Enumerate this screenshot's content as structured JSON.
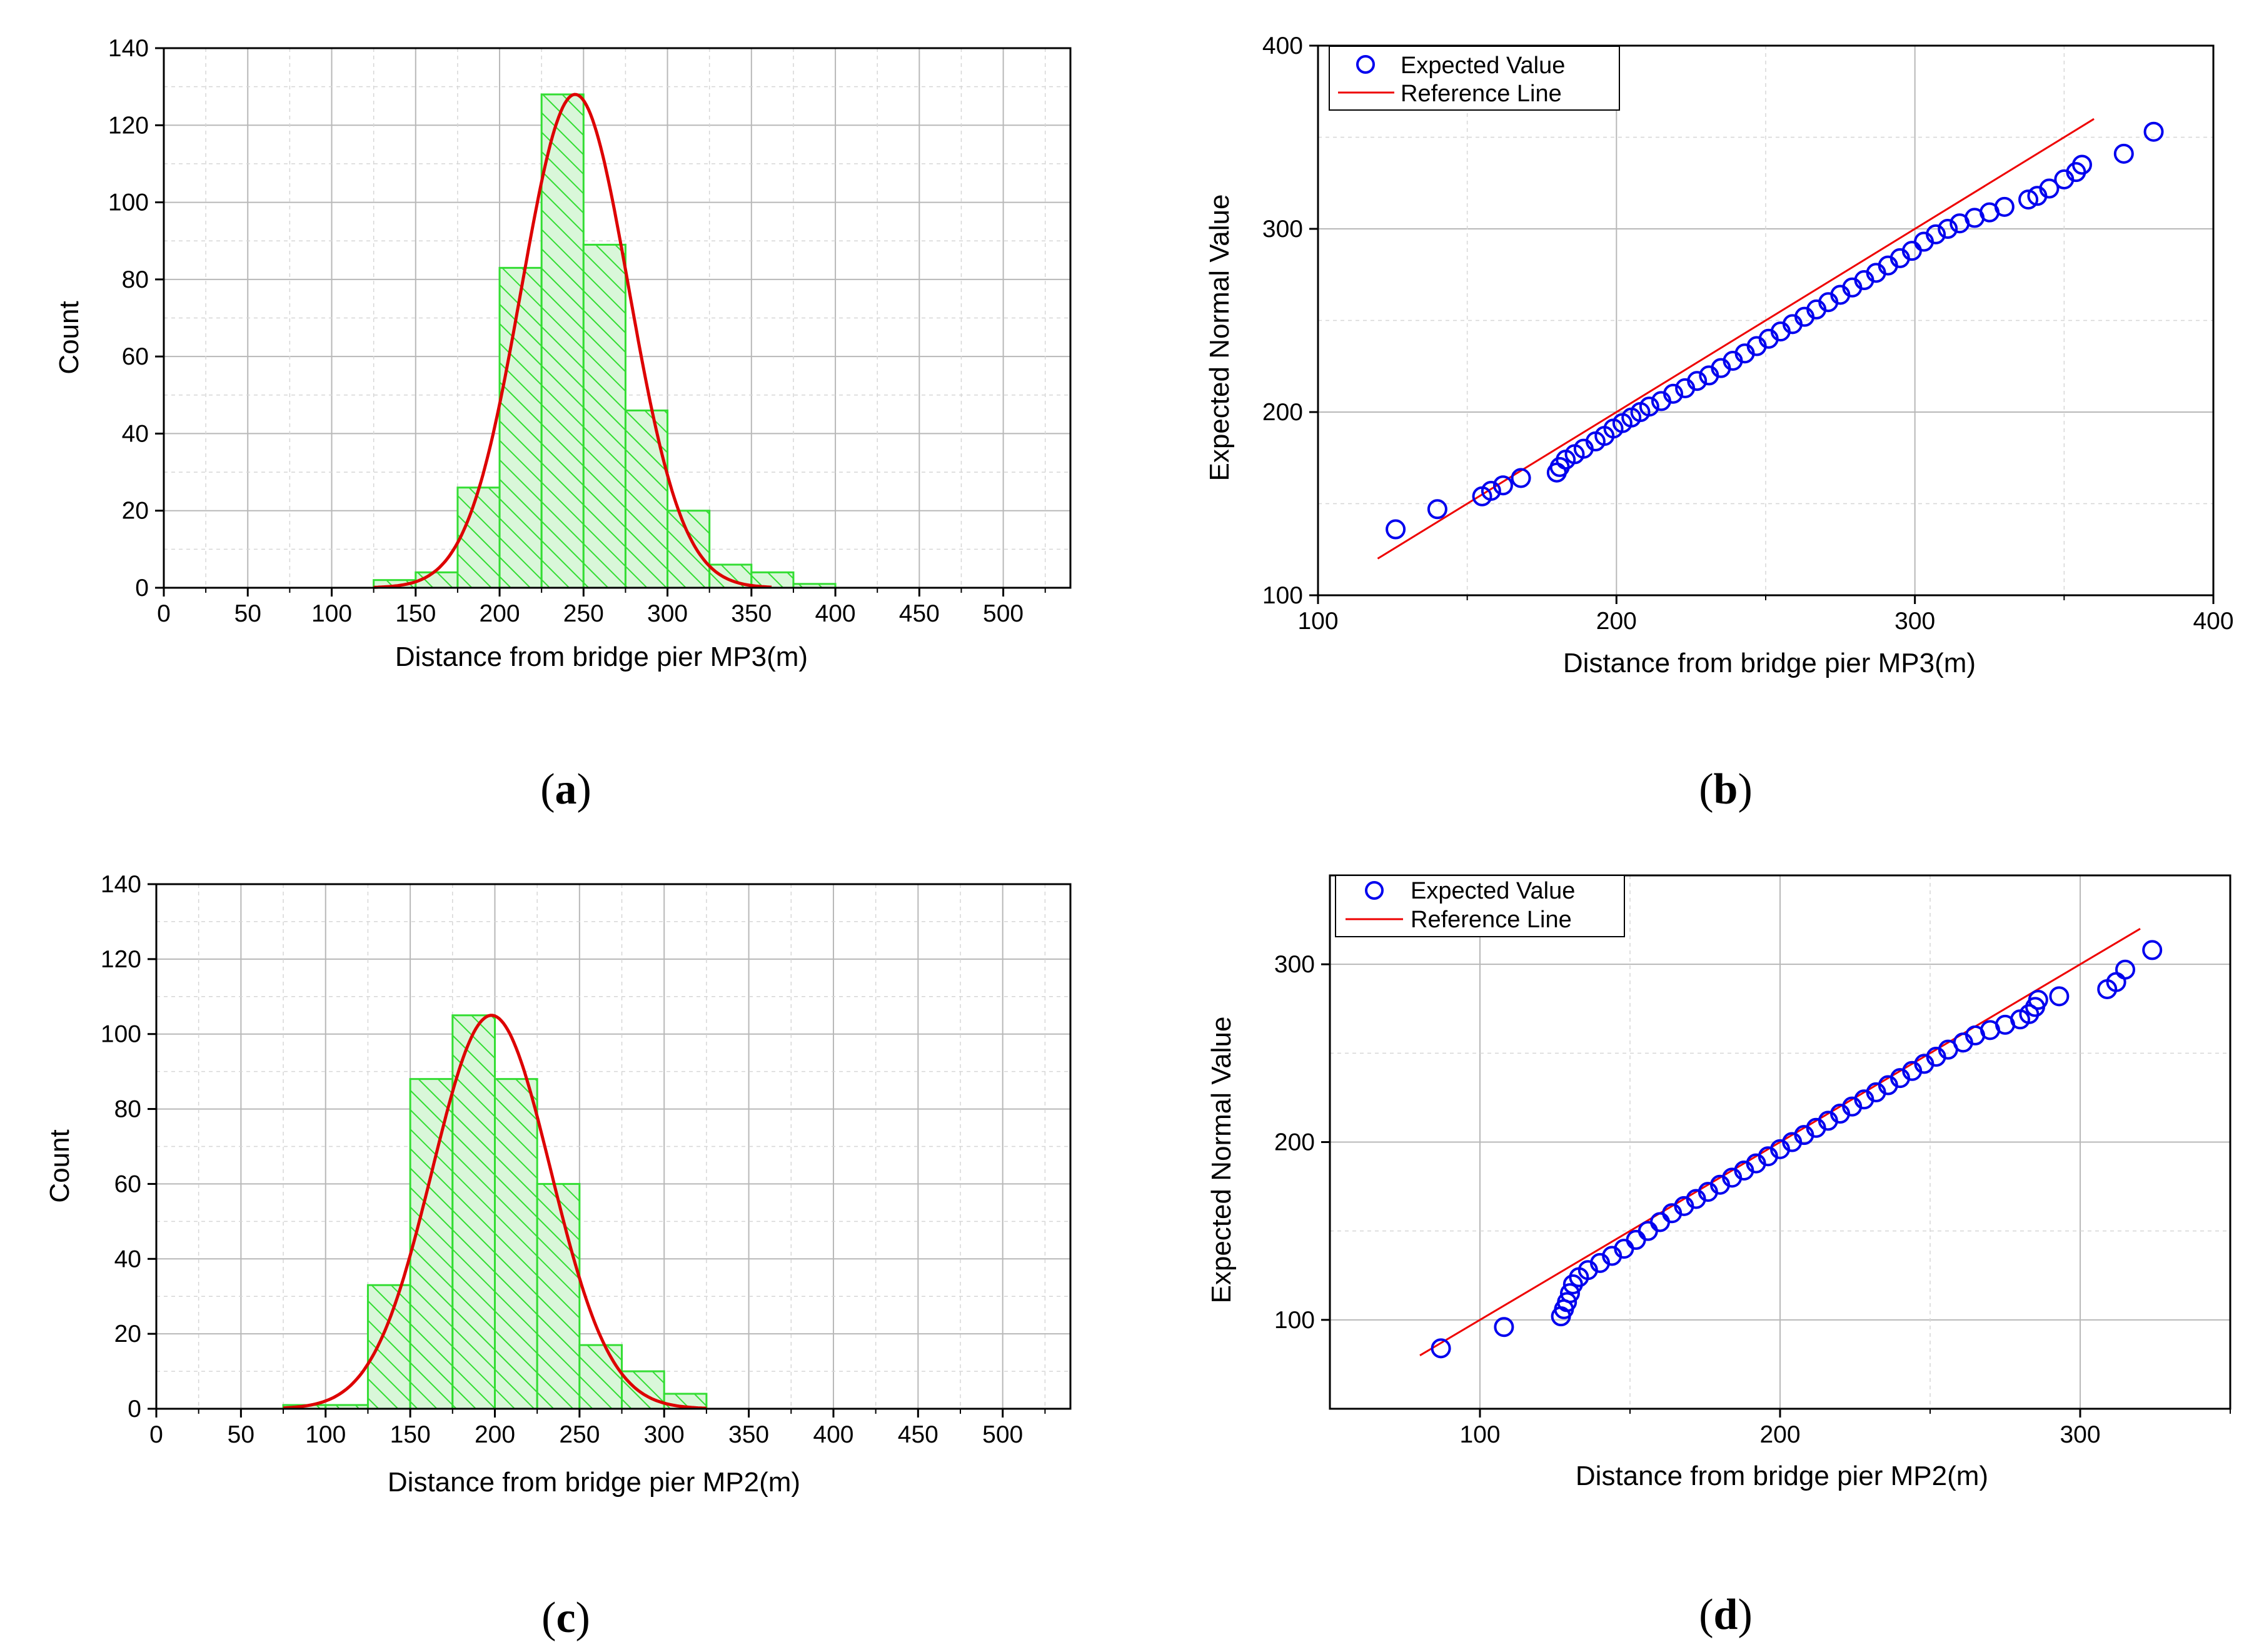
{
  "colors": {
    "bar_fill": "#d9f7d9",
    "bar_stroke": "#33dd33",
    "hatch": "#33dd33",
    "curve": "#dd0000",
    "marker": "#0000ee",
    "reference": "#ee0000",
    "grid": "#b8b8b8",
    "axis": "#000000"
  },
  "chart_data": [
    {
      "panel": "a",
      "caption_letter": "a",
      "type": "bar",
      "subtype": "histogram with fitted normal curve",
      "xlabel": "Distance from bridge pier MP3(m)",
      "ylabel": "Count",
      "xlim": [
        0,
        540
      ],
      "ylim": [
        0,
        140
      ],
      "xticks": [
        0,
        50,
        100,
        150,
        200,
        250,
        300,
        350,
        400,
        450,
        500
      ],
      "yticks": [
        0,
        20,
        40,
        60,
        80,
        100,
        120,
        140
      ],
      "bin_width": 25,
      "bin_starts": [
        125,
        150,
        175,
        200,
        225,
        250,
        275,
        300,
        325,
        350,
        375
      ],
      "values": [
        2,
        4,
        26,
        83,
        128,
        89,
        46,
        20,
        6,
        4,
        1
      ],
      "fit_curve": {
        "type": "normal",
        "mean": 245,
        "sd": 32,
        "peak": 128,
        "x_range": [
          125,
          362
        ]
      }
    },
    {
      "panel": "b",
      "caption_letter": "b",
      "type": "scatter",
      "subtype": "normal probability plot",
      "xlabel": "Distance from bridge pier MP3(m)",
      "ylabel": "Expected Normal Value",
      "xlim": [
        100,
        400
      ],
      "ylim": [
        100,
        400
      ],
      "xticks": [
        100,
        200,
        300,
        400
      ],
      "yticks": [
        100,
        200,
        300,
        400
      ],
      "legend": [
        "Expected Value",
        "Reference Line"
      ],
      "legend_position": "top-left",
      "reference_line": {
        "x": [
          120,
          360
        ],
        "y": [
          120,
          360
        ]
      },
      "points": [
        [
          126,
          136
        ],
        [
          140,
          147
        ],
        [
          155,
          154
        ],
        [
          158,
          157
        ],
        [
          162,
          160
        ],
        [
          168,
          164
        ],
        [
          180,
          167
        ],
        [
          181,
          170
        ],
        [
          183,
          174
        ],
        [
          186,
          177
        ],
        [
          189,
          180
        ],
        [
          193,
          184
        ],
        [
          196,
          187
        ],
        [
          199,
          191
        ],
        [
          202,
          194
        ],
        [
          205,
          197
        ],
        [
          208,
          200
        ],
        [
          211,
          203
        ],
        [
          215,
          206
        ],
        [
          219,
          210
        ],
        [
          223,
          213
        ],
        [
          227,
          217
        ],
        [
          231,
          220
        ],
        [
          235,
          224
        ],
        [
          239,
          228
        ],
        [
          243,
          232
        ],
        [
          247,
          236
        ],
        [
          251,
          240
        ],
        [
          255,
          244
        ],
        [
          259,
          248
        ],
        [
          263,
          252
        ],
        [
          267,
          256
        ],
        [
          271,
          260
        ],
        [
          275,
          264
        ],
        [
          279,
          268
        ],
        [
          283,
          272
        ],
        [
          287,
          276
        ],
        [
          291,
          280
        ],
        [
          295,
          284
        ],
        [
          299,
          288
        ],
        [
          303,
          293
        ],
        [
          307,
          297
        ],
        [
          311,
          300
        ],
        [
          315,
          303
        ],
        [
          320,
          306
        ],
        [
          325,
          309
        ],
        [
          330,
          312
        ],
        [
          338,
          316
        ],
        [
          341,
          318
        ],
        [
          345,
          322
        ],
        [
          350,
          327
        ],
        [
          354,
          331
        ],
        [
          356,
          335
        ],
        [
          370,
          341
        ],
        [
          380,
          353
        ]
      ]
    },
    {
      "panel": "c",
      "caption_letter": "c",
      "type": "bar",
      "subtype": "histogram with fitted normal curve",
      "xlabel": "Distance from bridge pier MP2(m)",
      "ylabel": "Count",
      "xlim": [
        0,
        540
      ],
      "ylim": [
        0,
        140
      ],
      "xticks": [
        0,
        50,
        100,
        150,
        200,
        250,
        300,
        350,
        400,
        450,
        500
      ],
      "yticks": [
        0,
        20,
        40,
        60,
        80,
        100,
        120,
        140
      ],
      "bin_width": 25,
      "bin_starts": [
        75,
        100,
        125,
        150,
        175,
        200,
        225,
        250,
        275,
        300
      ],
      "values": [
        1,
        1,
        33,
        88,
        105,
        88,
        60,
        17,
        10,
        4
      ],
      "fit_curve": {
        "type": "normal",
        "mean": 198,
        "sd": 35,
        "peak": 105,
        "x_range": [
          75,
          325
        ]
      }
    },
    {
      "panel": "d",
      "caption_letter": "d",
      "type": "scatter",
      "subtype": "normal probability plot",
      "xlabel": "Distance from bridge pier MP2(m)",
      "ylabel": "Expected Normal Value",
      "xlim": [
        50,
        350
      ],
      "ylim": [
        50,
        350
      ],
      "xticks": [
        100,
        200,
        300
      ],
      "yticks": [
        100,
        200,
        300
      ],
      "legend": [
        "Expected Value",
        "Reference Line"
      ],
      "legend_position": "top-left",
      "reference_line": {
        "x": [
          80,
          320
        ],
        "y": [
          80,
          320
        ]
      },
      "points": [
        [
          87,
          84
        ],
        [
          108,
          96
        ],
        [
          127,
          102
        ],
        [
          128,
          106
        ],
        [
          129,
          110
        ],
        [
          130,
          115
        ],
        [
          131,
          120
        ],
        [
          133,
          124
        ],
        [
          136,
          128
        ],
        [
          140,
          132
        ],
        [
          144,
          136
        ],
        [
          148,
          140
        ],
        [
          152,
          145
        ],
        [
          156,
          150
        ],
        [
          160,
          155
        ],
        [
          164,
          160
        ],
        [
          168,
          164
        ],
        [
          172,
          168
        ],
        [
          176,
          172
        ],
        [
          180,
          176
        ],
        [
          184,
          180
        ],
        [
          188,
          184
        ],
        [
          192,
          188
        ],
        [
          196,
          192
        ],
        [
          200,
          196
        ],
        [
          204,
          200
        ],
        [
          208,
          204
        ],
        [
          212,
          208
        ],
        [
          216,
          212
        ],
        [
          220,
          216
        ],
        [
          224,
          220
        ],
        [
          228,
          224
        ],
        [
          232,
          228
        ],
        [
          236,
          232
        ],
        [
          240,
          236
        ],
        [
          244,
          240
        ],
        [
          248,
          244
        ],
        [
          252,
          248
        ],
        [
          256,
          252
        ],
        [
          261,
          256
        ],
        [
          265,
          260
        ],
        [
          270,
          263
        ],
        [
          275,
          266
        ],
        [
          280,
          269
        ],
        [
          283,
          272
        ],
        [
          285,
          276
        ],
        [
          286,
          280
        ],
        [
          293,
          282
        ],
        [
          309,
          286
        ],
        [
          312,
          290
        ],
        [
          315,
          297
        ],
        [
          324,
          308
        ]
      ]
    }
  ]
}
